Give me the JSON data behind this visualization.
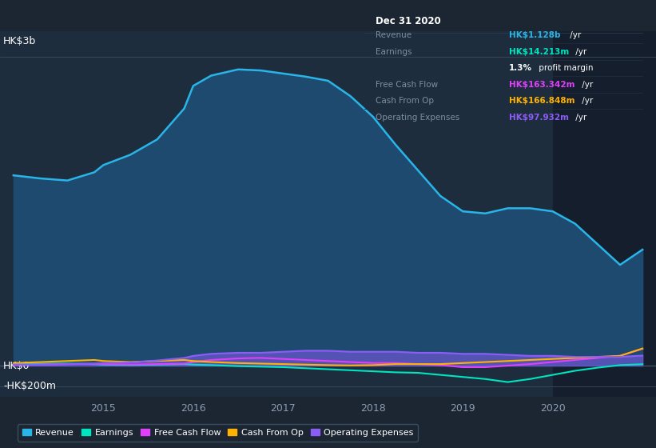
{
  "bg_color": "#1c2633",
  "plot_bg_color": "#1e2d3d",
  "highlight_bg": "#141e2d",
  "title": "Dec 31 2020",
  "ylabel_top": "HK$3b",
  "ylabel_zero": "HK$0",
  "ylabel_neg": "-HK$200m",
  "x_years": [
    2014.0,
    2014.3,
    2014.6,
    2014.9,
    2015.0,
    2015.3,
    2015.6,
    2015.9,
    2016.0,
    2016.2,
    2016.5,
    2016.75,
    2017.0,
    2017.25,
    2017.5,
    2017.75,
    2018.0,
    2018.25,
    2018.5,
    2018.75,
    2019.0,
    2019.25,
    2019.5,
    2019.75,
    2020.0,
    2020.25,
    2020.5,
    2020.75,
    2021.0
  ],
  "revenue": [
    1.85,
    1.82,
    1.8,
    1.88,
    1.95,
    2.05,
    2.2,
    2.5,
    2.72,
    2.82,
    2.88,
    2.87,
    2.84,
    2.81,
    2.77,
    2.62,
    2.42,
    2.15,
    1.9,
    1.65,
    1.5,
    1.48,
    1.53,
    1.53,
    1.5,
    1.38,
    1.18,
    0.98,
    1.128
  ],
  "earnings": [
    0.02,
    0.02,
    0.02,
    0.015,
    0.01,
    0.005,
    0.01,
    0.015,
    0.01,
    0.005,
    -0.005,
    -0.01,
    -0.015,
    -0.025,
    -0.035,
    -0.045,
    -0.055,
    -0.065,
    -0.07,
    -0.09,
    -0.11,
    -0.13,
    -0.16,
    -0.13,
    -0.09,
    -0.05,
    -0.02,
    0.005,
    0.014
  ],
  "free_cash_flow": [
    0.005,
    0.01,
    0.015,
    0.018,
    0.015,
    0.01,
    0.015,
    0.02,
    0.035,
    0.055,
    0.07,
    0.075,
    0.065,
    0.055,
    0.045,
    0.035,
    0.025,
    0.025,
    0.015,
    0.005,
    -0.015,
    -0.015,
    0.0,
    0.015,
    0.035,
    0.055,
    0.075,
    0.095,
    0.163
  ],
  "cash_from_op": [
    0.025,
    0.035,
    0.045,
    0.055,
    0.045,
    0.035,
    0.045,
    0.055,
    0.045,
    0.035,
    0.025,
    0.02,
    0.015,
    0.01,
    0.005,
    0.002,
    0.005,
    0.015,
    0.015,
    0.015,
    0.025,
    0.035,
    0.045,
    0.055,
    0.065,
    0.075,
    0.085,
    0.095,
    0.167
  ],
  "operating_expenses": [
    0.01,
    0.01,
    0.015,
    0.02,
    0.025,
    0.03,
    0.05,
    0.075,
    0.095,
    0.115,
    0.125,
    0.125,
    0.135,
    0.145,
    0.145,
    0.135,
    0.135,
    0.135,
    0.125,
    0.125,
    0.115,
    0.115,
    0.105,
    0.095,
    0.095,
    0.085,
    0.085,
    0.085,
    0.098
  ],
  "revenue_color": "#29b5e8",
  "earnings_color": "#00e5c0",
  "free_cash_flow_color": "#e040fb",
  "cash_from_op_color": "#ffb300",
  "operating_expenses_color": "#8b5cf6",
  "revenue_fill_color": "#1e4a70",
  "highlight_start": 2020.0,
  "x_min": 2013.85,
  "x_max": 2021.15,
  "y_min": -0.3,
  "y_max": 3.25,
  "y_zero": 0.0,
  "y_top": 3.0,
  "y_neg": -0.2,
  "info_box": {
    "title": "Dec 31 2020",
    "rows": [
      {
        "label": "Revenue",
        "value": "HK$1.128b",
        "suffix": " /yr",
        "color": "#29b5e8"
      },
      {
        "label": "Earnings",
        "value": "HK$14.213m",
        "suffix": " /yr",
        "color": "#00e5c0"
      },
      {
        "label": "",
        "value": "1.3%",
        "suffix": " profit margin",
        "color": "#ffffff"
      },
      {
        "label": "Free Cash Flow",
        "value": "HK$163.342m",
        "suffix": " /yr",
        "color": "#e040fb"
      },
      {
        "label": "Cash From Op",
        "value": "HK$166.848m",
        "suffix": " /yr",
        "color": "#ffb300"
      },
      {
        "label": "Operating Expenses",
        "value": "HK$97.932m",
        "suffix": " /yr",
        "color": "#8b5cf6"
      }
    ]
  },
  "legend_items": [
    {
      "label": "Revenue",
      "color": "#29b5e8"
    },
    {
      "label": "Earnings",
      "color": "#00e5c0"
    },
    {
      "label": "Free Cash Flow",
      "color": "#e040fb"
    },
    {
      "label": "Cash From Op",
      "color": "#ffb300"
    },
    {
      "label": "Operating Expenses",
      "color": "#8b5cf6"
    }
  ],
  "x_ticks": [
    2015,
    2016,
    2017,
    2018,
    2019,
    2020
  ]
}
